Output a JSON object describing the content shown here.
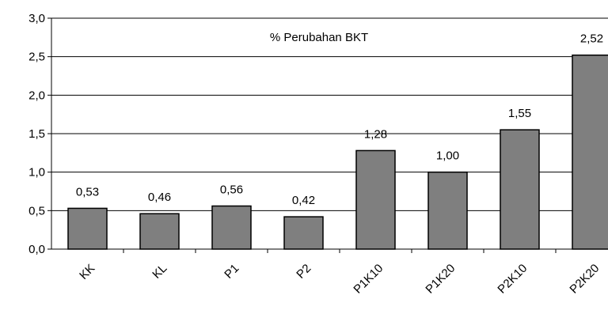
{
  "chart_data": {
    "type": "bar",
    "title": "% Perubahan BKT",
    "categories": [
      "KK",
      "KL",
      "P1",
      "P2",
      "P1K10",
      "P1K20",
      "P2K10",
      "P2K20"
    ],
    "values": [
      0.53,
      0.46,
      0.56,
      0.42,
      1.28,
      1.0,
      1.55,
      2.52
    ],
    "data_labels": [
      "0,53",
      "0,46",
      "0,56",
      "0,42",
      "1,28",
      "1,00",
      "1,55",
      "2,52"
    ],
    "ylim": [
      0,
      3.0
    ],
    "yticks": [
      "0,0",
      "0,5",
      "1,0",
      "1,5",
      "2,0",
      "2,5",
      "3,0"
    ],
    "ytick_values": [
      0,
      0.5,
      1.0,
      1.5,
      2.0,
      2.5,
      3.0
    ],
    "grid": true,
    "xlabel": "",
    "ylabel": "",
    "bar_color": "#7f7f7f",
    "bar_edge_color": "#000000"
  }
}
